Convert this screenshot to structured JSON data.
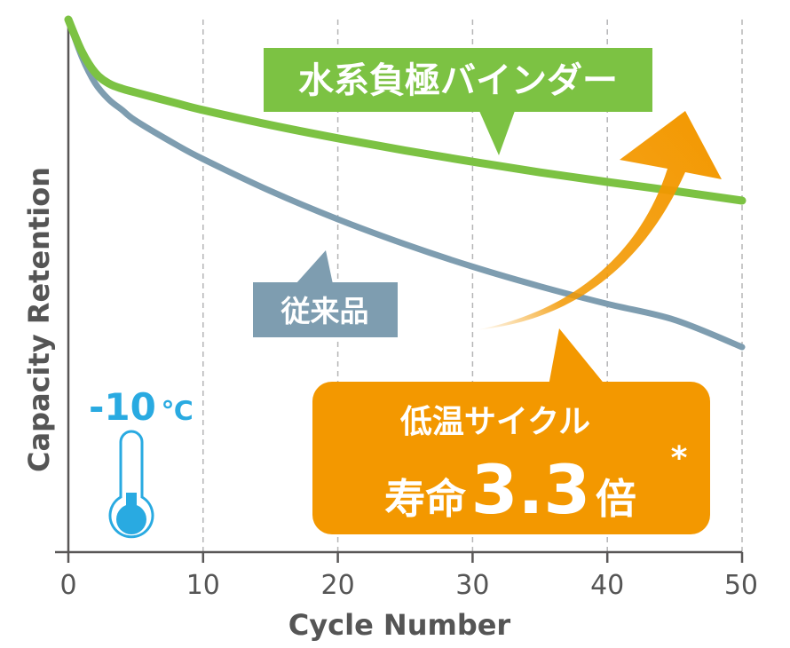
{
  "chart_data": {
    "type": "line",
    "title": "",
    "xlabel": "Cycle Number",
    "ylabel": "Capacity Retention",
    "xlim": [
      0,
      50
    ],
    "xticks": [
      0,
      10,
      20,
      30,
      40,
      50
    ],
    "ylim": [
      0,
      100
    ],
    "y_tick_labels_shown": false,
    "grid": "vertical dashed lines at x ticks",
    "series": [
      {
        "name": "水系負極バインダー",
        "color": "#7cc243",
        "x": [
          0,
          1,
          2,
          3,
          4,
          5,
          8,
          10,
          15,
          20,
          25,
          30,
          35,
          40,
          45,
          50
        ],
        "y": [
          100,
          94,
          90,
          88,
          87,
          86.3,
          84.3,
          83.0,
          80.2,
          77.7,
          75.4,
          73.3,
          71.3,
          69.5,
          67.8,
          66.0
        ]
      },
      {
        "name": "従来品",
        "color": "#7e9db0",
        "x": [
          0,
          1,
          2,
          3,
          4,
          5,
          8,
          10,
          15,
          20,
          25,
          30,
          35,
          40,
          45,
          50
        ],
        "y": [
          100,
          93,
          88,
          85,
          83,
          81,
          76.5,
          73.8,
          67.8,
          62.5,
          57.8,
          53.6,
          49.9,
          46.6,
          43.6,
          38.5
        ]
      }
    ],
    "annotations": {
      "temperature": {
        "value_text": "-10",
        "unit_text": "℃",
        "color": "#29aae1"
      },
      "highlight": {
        "line1": "低温サイクル",
        "prefix": "寿命",
        "number": "3.3",
        "suffix": "倍",
        "mark": "*",
        "color": "#f39800"
      }
    }
  }
}
